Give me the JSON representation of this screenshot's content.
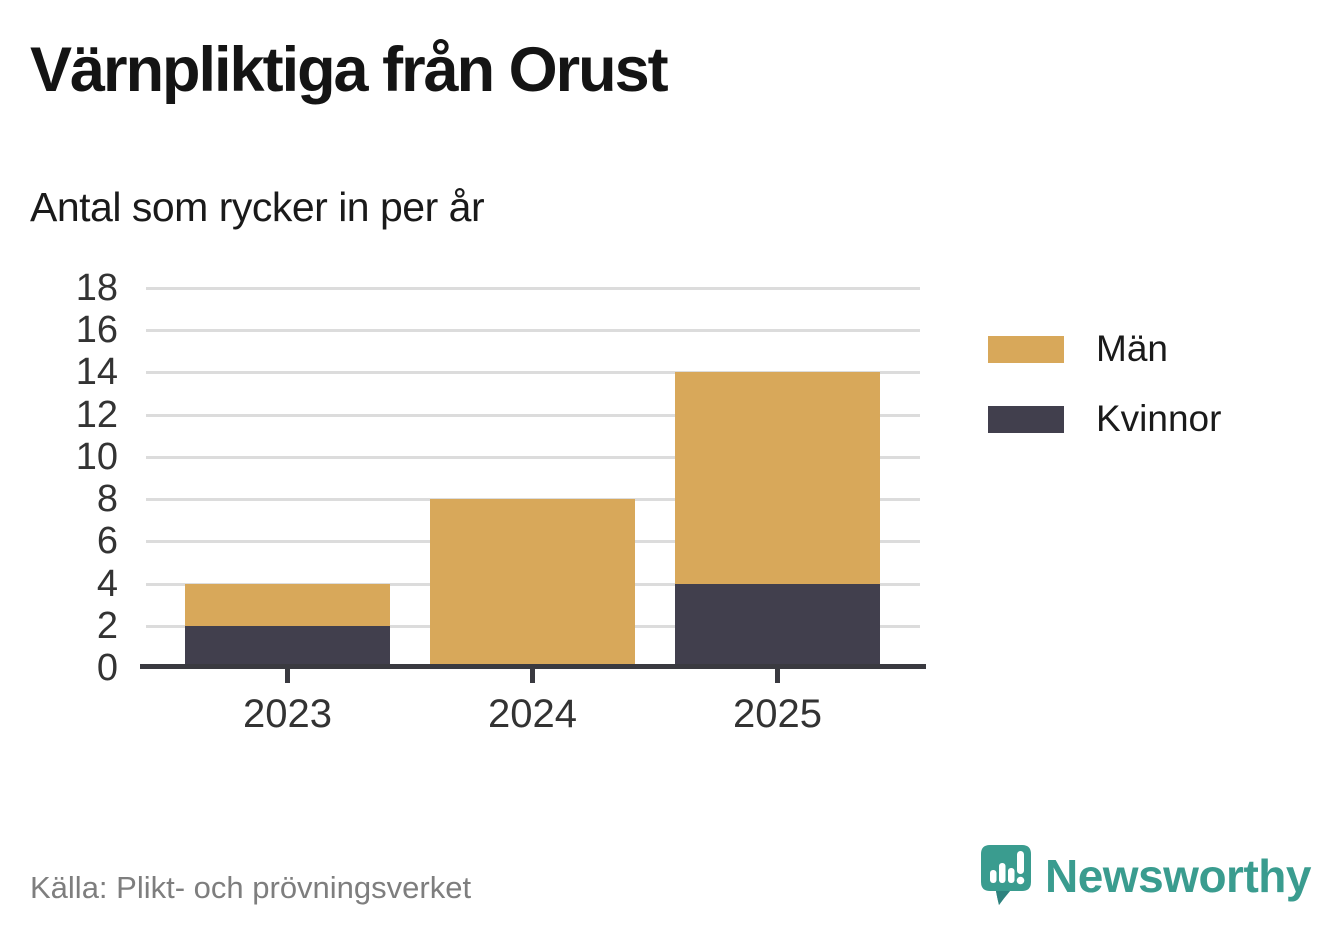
{
  "chart_data": {
    "type": "bar",
    "stacked": true,
    "title": "Värnpliktiga från Orust",
    "subtitle": "Antal som rycker in per år",
    "categories": [
      "2023",
      "2024",
      "2025"
    ],
    "series": [
      {
        "name": "Män",
        "color": "#d8a85a",
        "values": [
          2,
          8,
          10
        ]
      },
      {
        "name": "Kvinnor",
        "color": "#413f4d",
        "values": [
          2,
          0,
          4
        ]
      }
    ],
    "ylim": [
      0,
      18
    ],
    "yticks": [
      0,
      2,
      4,
      6,
      8,
      10,
      12,
      14,
      16,
      18
    ],
    "grid": true,
    "legend_position": "right",
    "xlabel": "",
    "ylabel": ""
  },
  "footer": {
    "source": "Källa: Plikt- och prövningsverket",
    "brand": "Newsworthy"
  },
  "colors": {
    "grid": "#dcdcdc",
    "axis": "#3a3a40",
    "tick_text": "#333333",
    "brand_teal": "#3a9c8f"
  }
}
